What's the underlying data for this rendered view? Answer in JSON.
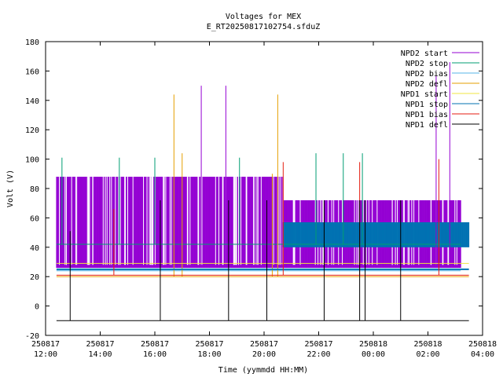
{
  "chart_data": {
    "type": "line",
    "title": "Voltages for MEX",
    "subtitle": "E_RT20250817102754.sfduZ",
    "xlabel": "Time (yymmdd HH:MM)",
    "ylabel": "Volt (V)",
    "xlim_hours": [
      12,
      28
    ],
    "ylim": [
      -20,
      180
    ],
    "y_ticks": [
      "-20",
      "0",
      "20",
      "40",
      "60",
      "80",
      "100",
      "120",
      "140",
      "160",
      "180"
    ],
    "x_ticks": [
      {
        "hour": 12,
        "date": "250817",
        "time": "12:00"
      },
      {
        "hour": 14,
        "date": "250817",
        "time": "14:00"
      },
      {
        "hour": 16,
        "date": "250817",
        "time": "16:00"
      },
      {
        "hour": 18,
        "date": "250817",
        "time": "18:00"
      },
      {
        "hour": 20,
        "date": "250817",
        "time": "20:00"
      },
      {
        "hour": 22,
        "date": "250817",
        "time": "22:00"
      },
      {
        "hour": 24,
        "date": "250818",
        "time": "00:00"
      },
      {
        "hour": 26,
        "date": "250818",
        "time": "02:00"
      },
      {
        "hour": 28,
        "date": "250818",
        "time": "04:00"
      }
    ],
    "grid": false,
    "legend_position": "top-right",
    "series": [
      {
        "name": "NPD2 start",
        "color": "#9400d3",
        "baseline": 27,
        "high": 88,
        "low": 26,
        "start_hour": 12.4,
        "end_hour": 27.2,
        "spikes": [
          [
            17.7,
            150
          ],
          [
            18.6,
            150
          ],
          [
            26.3,
            157
          ],
          [
            26.8,
            166
          ]
        ]
      },
      {
        "name": "NPD2 stop",
        "color": "#009e73",
        "baseline": 42,
        "start_hour": 12.4,
        "end_hour": 27.2,
        "spikes": [
          [
            12.6,
            101
          ],
          [
            14.7,
            101
          ],
          [
            16.0,
            101
          ],
          [
            19.1,
            101
          ],
          [
            21.9,
            104
          ],
          [
            22.9,
            104
          ],
          [
            23.6,
            104
          ]
        ]
      },
      {
        "name": "NPD2 bias",
        "color": "#56b4e9",
        "baseline": 24,
        "start_hour": 12.4,
        "end_hour": 27.2,
        "spikes": []
      },
      {
        "name": "NPD2 defl",
        "color": "#e69f00",
        "baseline": 20,
        "start_hour": 12.4,
        "end_hour": 27.5,
        "spikes": [
          [
            16.7,
            144
          ],
          [
            17.0,
            104
          ],
          [
            20.5,
            144
          ],
          [
            20.3,
            90
          ]
        ]
      },
      {
        "name": "NPD1 start",
        "color": "#f0e442",
        "baseline": 29,
        "start_hour": 12.4,
        "end_hour": 27.5,
        "spikes": []
      },
      {
        "name": "NPD1 stop",
        "color": "#0072b2",
        "baseline": 25,
        "band_low": 40,
        "band_high": 57,
        "band_start_hour": 20.7,
        "band_end_hour": 27.5,
        "start_hour": 12.4,
        "end_hour": 27.5,
        "spikes": []
      },
      {
        "name": "NPD1 bias",
        "color": "#e51e10",
        "baseline": 21,
        "start_hour": 12.4,
        "end_hour": 27.5,
        "spikes": [
          [
            14.5,
            66
          ],
          [
            20.7,
            98
          ],
          [
            23.5,
            98
          ],
          [
            26.4,
            100
          ]
        ]
      },
      {
        "name": "NPD1 defl",
        "color": "#000000",
        "baseline": -10,
        "start_hour": 12.4,
        "end_hour": 27.5,
        "spikes": [
          [
            12.9,
            51
          ],
          [
            16.2,
            72
          ],
          [
            18.7,
            72
          ],
          [
            20.1,
            72
          ],
          [
            22.2,
            72
          ],
          [
            23.5,
            72
          ],
          [
            23.7,
            72
          ],
          [
            25.0,
            72
          ]
        ]
      }
    ]
  }
}
